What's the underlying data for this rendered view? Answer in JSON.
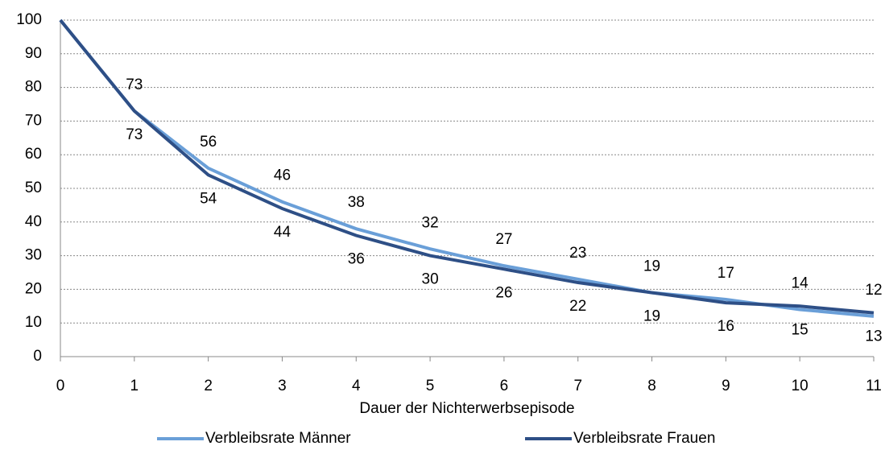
{
  "chart_data": {
    "type": "line",
    "x_label": "Dauer der Nichterwerbsepisode",
    "x": [
      0,
      1,
      2,
      3,
      4,
      5,
      6,
      7,
      8,
      9,
      10,
      11
    ],
    "series": [
      {
        "name": "Verbleibsrate Männer",
        "color": "#6a9fd8",
        "values": [
          100,
          73,
          56,
          46,
          38,
          32,
          27,
          23,
          19,
          17,
          14,
          12
        ],
        "value_labels": [
          null,
          "73",
          "56",
          "46",
          "38",
          "32",
          "27",
          "23",
          "19",
          "17",
          "14",
          "12"
        ]
      },
      {
        "name": "Verbleibsrate Frauen",
        "color": "#2e4f86",
        "values": [
          100,
          73,
          54,
          44,
          36,
          30,
          26,
          22,
          19,
          16,
          15,
          13
        ],
        "value_labels": [
          null,
          "73",
          "54",
          "44",
          "36",
          "30",
          "26",
          "22",
          "19",
          "16",
          "15",
          "13"
        ]
      }
    ],
    "xlim": [
      0,
      11
    ],
    "xticks": [
      0,
      1,
      2,
      3,
      4,
      5,
      6,
      7,
      8,
      9,
      10,
      11
    ],
    "ylim": [
      0,
      100
    ],
    "yticks": [
      0,
      10,
      20,
      30,
      40,
      50,
      60,
      70,
      80,
      90,
      100
    ],
    "grid": true,
    "legend": "bottom"
  }
}
